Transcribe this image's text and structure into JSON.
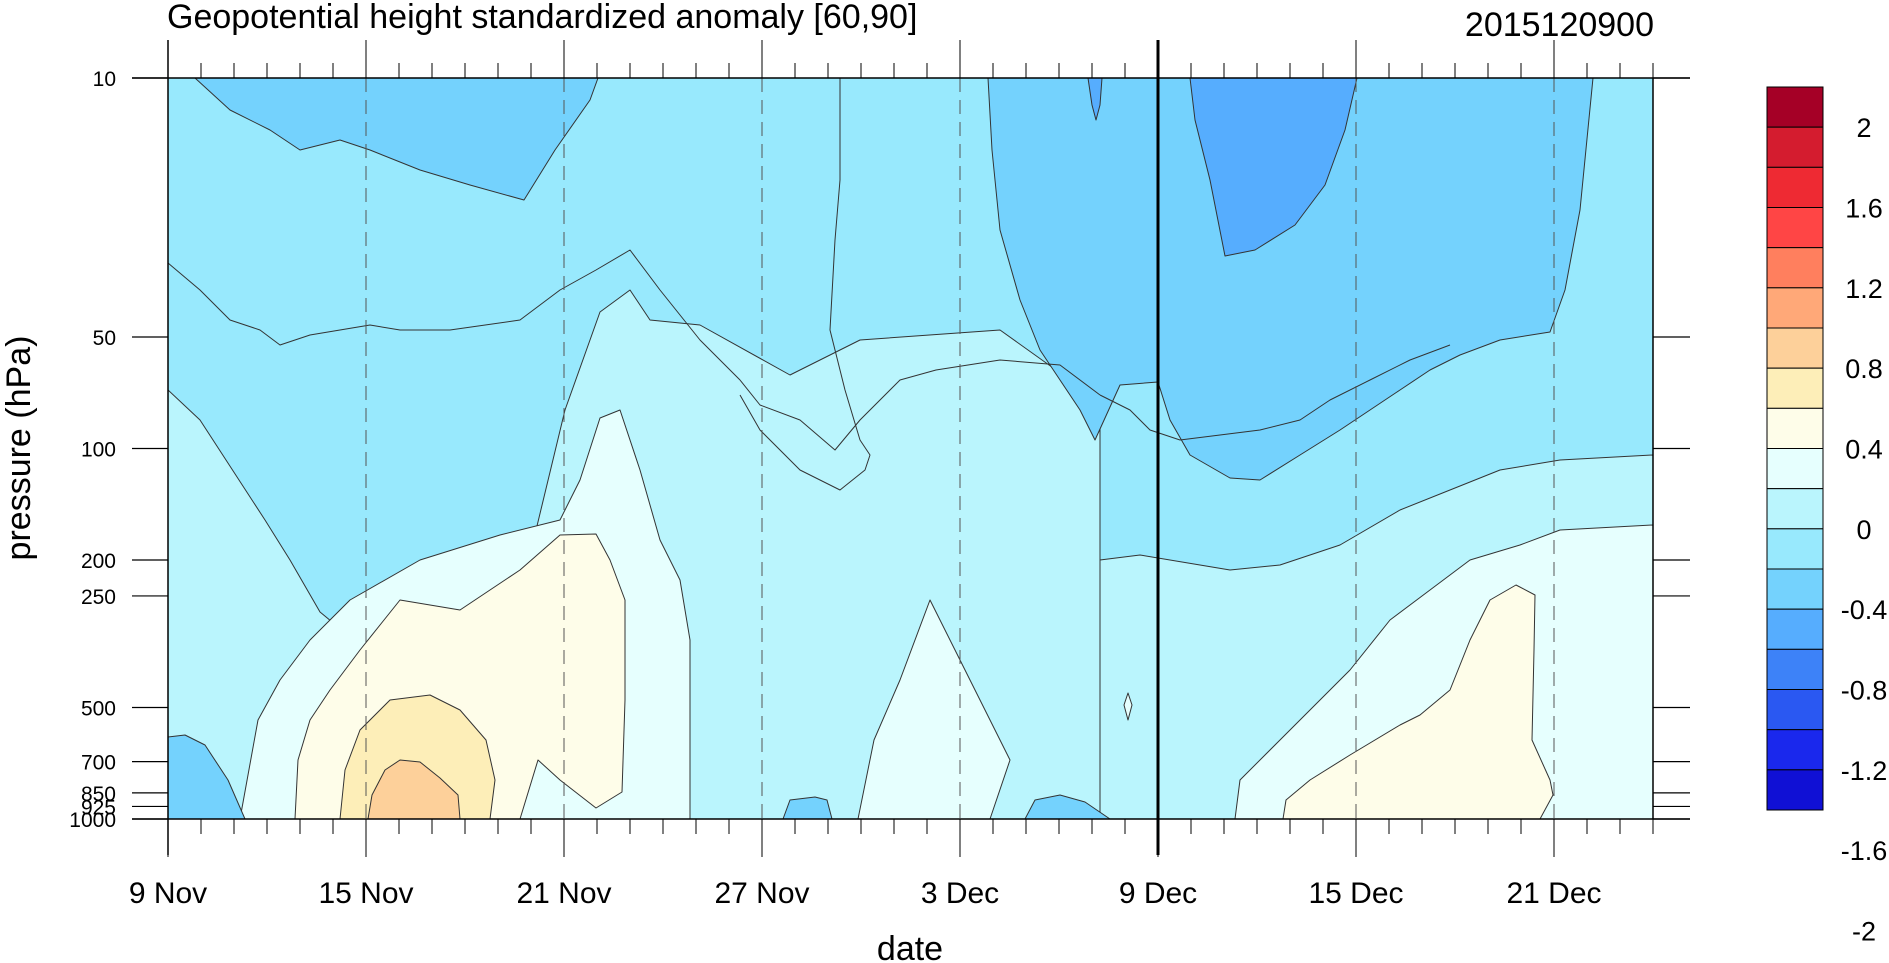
{
  "chart_data": {
    "type": "heatmap",
    "title": "Geopotential height standardized anomaly [60,90]",
    "subtitle": "2015120900",
    "xlabel": "date",
    "ylabel": "pressure (hPa)",
    "x_ticks": [
      {
        "label": "9 Nov",
        "day": 0
      },
      {
        "label": "15 Nov",
        "day": 6
      },
      {
        "label": "21 Nov",
        "day": 12
      },
      {
        "label": "27 Nov",
        "day": 18
      },
      {
        "label": "3 Dec",
        "day": 24
      },
      {
        "label": "9 Dec",
        "day": 30
      },
      {
        "label": "15 Dec",
        "day": 36
      },
      {
        "label": "21 Dec",
        "day": 42
      }
    ],
    "x_range_days": [
      0,
      45
    ],
    "y_ticks": [
      "10",
      "50",
      "100",
      "200",
      "250",
      "500",
      "700",
      "850",
      "925",
      "1000"
    ],
    "y_log": true,
    "y_range": [
      1000,
      10
    ],
    "reference_date_line": "9 Dec",
    "colorbar": {
      "labels": [
        "2",
        "1.6",
        "1.2",
        "0.8",
        "0.4",
        "0",
        "-0.4",
        "-0.8",
        "-1.2",
        "-1.6",
        "-2"
      ],
      "colors": [
        "#a50026",
        "#d41c2f",
        "#ee2a33",
        "#ff4545",
        "#ff7f5e",
        "#ffa878",
        "#fdd09a",
        "#fdeeb8",
        "#fefde9",
        "#e6fffe",
        "#baf5fd",
        "#98e9fd",
        "#74d2fd",
        "#56adfe",
        "#3d82f8",
        "#2a58f2",
        "#1a28ed",
        "#1010d5"
      ]
    },
    "levels": {
      "le_-1.0": "#56adfe",
      "-1.0_-0.6": "#74d2fd",
      "-0.6_-0.4": "#98e9fd",
      "-0.4_-0.2": "#baf5fd",
      "-0.2_0": "#e6fffe",
      "0_0.2": "#fefde9",
      "0.2_0.4": "#fdeeb8",
      "0.4_0.6": "#fdd09a"
    }
  }
}
